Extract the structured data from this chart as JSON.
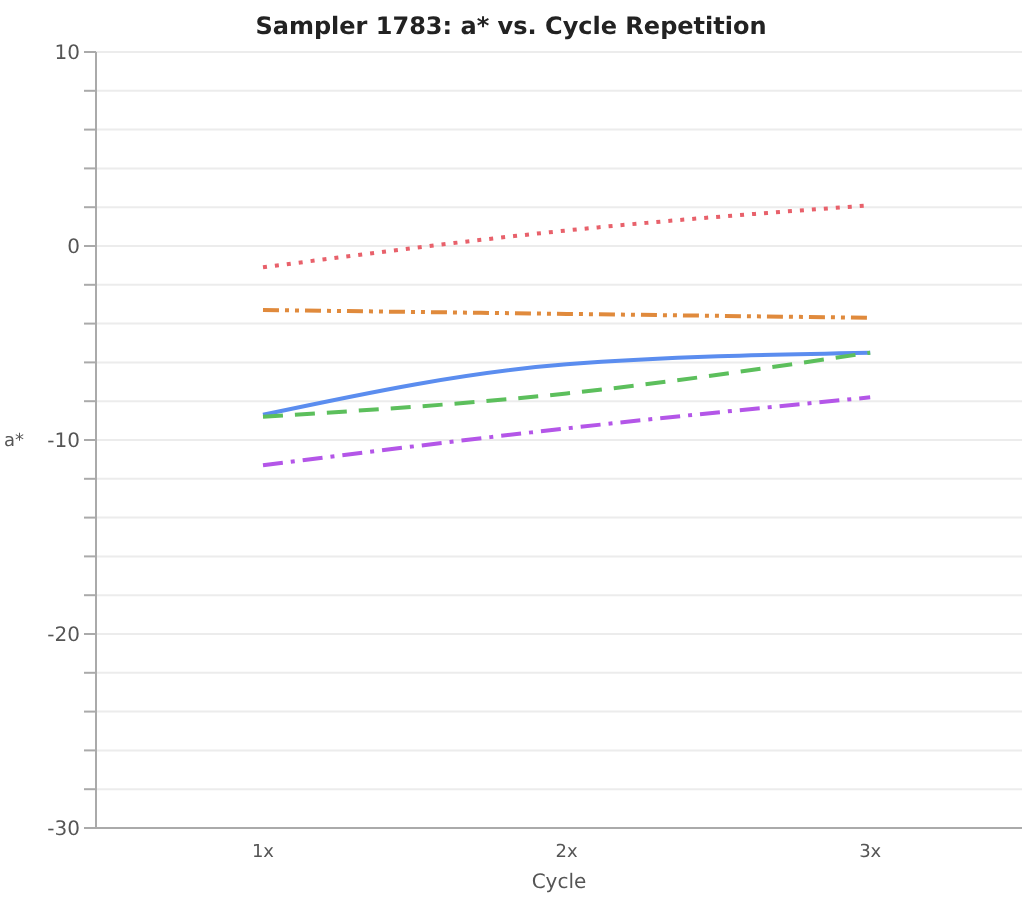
{
  "chart_data": {
    "type": "line",
    "title": "Sampler 1783: a* vs. Cycle Repetition",
    "xlabel": "Cycle",
    "ylabel": "a*",
    "categories": [
      "1x",
      "2x",
      "3x"
    ],
    "series": [
      {
        "color": "#e8616b",
        "line_style": "dotted",
        "values": [
          -1.1,
          0.8,
          2.1
        ]
      },
      {
        "color": "#e08a3c",
        "line_style": "dashdotdot",
        "values": [
          -3.3,
          -3.5,
          -3.7
        ]
      },
      {
        "color": "#5b8def",
        "line_style": "solid",
        "values": [
          -8.7,
          -6.1,
          -5.5
        ]
      },
      {
        "color": "#5cbf5c",
        "line_style": "dashed",
        "values": [
          -8.8,
          -7.6,
          -5.5
        ]
      },
      {
        "color": "#b456e8",
        "line_style": "dashdot",
        "values": [
          -11.3,
          -9.4,
          -7.8
        ]
      }
    ],
    "ylim": [
      -30,
      10
    ],
    "yticks": [
      -30,
      {
        "value": -28,
        "label": null
      },
      {
        "value": -26,
        "label": null
      },
      {
        "value": -24,
        "label": null
      },
      {
        "value": -22,
        "label": null
      },
      -20,
      {
        "value": -18,
        "label": null
      },
      {
        "value": -16,
        "label": null
      },
      {
        "value": -14,
        "label": null
      },
      {
        "value": -12,
        "label": null
      },
      -10,
      {
        "value": -8,
        "label": null
      },
      {
        "value": -6,
        "label": null
      },
      {
        "value": -4,
        "label": null
      },
      {
        "value": -2,
        "label": null
      },
      0,
      {
        "value": 2,
        "label": null
      },
      {
        "value": 4,
        "label": null
      },
      {
        "value": 6,
        "label": null
      },
      {
        "value": 8,
        "label": null
      },
      10
    ],
    "grid": "y",
    "marker": "none"
  }
}
